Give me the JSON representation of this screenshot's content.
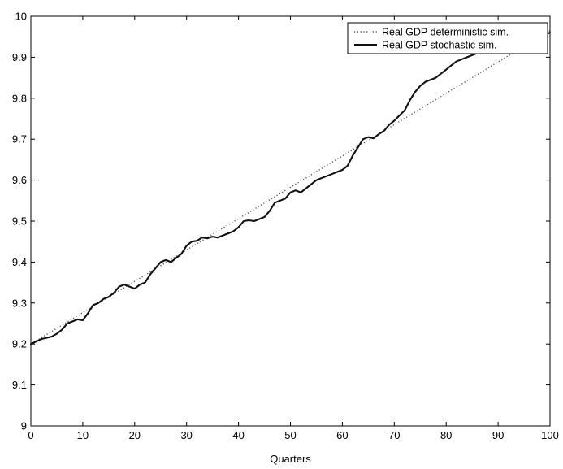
{
  "chart_data": {
    "type": "line",
    "title": "",
    "xlabel": "Quarters",
    "ylabel": "",
    "xlim": [
      0,
      100
    ],
    "ylim": [
      9.0,
      10.0
    ],
    "x_ticks": [
      0,
      10,
      20,
      30,
      40,
      50,
      60,
      70,
      80,
      90,
      100
    ],
    "y_ticks": [
      9,
      9.1,
      9.2,
      9.3,
      9.4,
      9.5,
      9.6,
      9.7,
      9.8,
      9.9,
      10
    ],
    "x_tick_labels": [
      "0",
      "10",
      "20",
      "30",
      "40",
      "50",
      "60",
      "70",
      "80",
      "90",
      "100"
    ],
    "y_tick_labels": [
      "9",
      "9.1",
      "9.2",
      "9.3",
      "9.4",
      "9.5",
      "9.6",
      "9.7",
      "9.8",
      "9.9",
      "10"
    ],
    "grid": false,
    "legend_position": "top-right",
    "series": [
      {
        "name": "Real GDP deterministic sim.",
        "style": "dotted",
        "color": "#555555",
        "x": [
          0,
          100
        ],
        "y": [
          9.2,
          9.965
        ]
      },
      {
        "name": "Real GDP stochastic sim.",
        "style": "solid",
        "color": "#111111",
        "x": [
          0,
          2,
          4,
          5,
          6,
          7,
          8,
          9,
          10,
          11,
          12,
          13,
          14,
          15,
          16,
          17,
          18,
          19,
          20,
          21,
          22,
          23,
          24,
          25,
          26,
          27,
          28,
          29,
          30,
          31,
          32,
          33,
          34,
          35,
          36,
          37,
          38,
          39,
          40,
          41,
          42,
          43,
          44,
          45,
          46,
          47,
          48,
          49,
          50,
          51,
          52,
          53,
          54,
          55,
          56,
          57,
          58,
          59,
          60,
          61,
          62,
          63,
          64,
          65,
          66,
          67,
          68,
          69,
          70,
          71,
          72,
          73,
          74,
          75,
          76,
          77,
          78,
          79,
          80,
          81,
          82,
          83,
          84,
          85,
          86,
          87,
          88,
          89,
          90,
          91,
          92,
          93,
          94,
          95,
          96,
          97,
          98,
          99,
          100
        ],
        "y": [
          9.2,
          9.212,
          9.218,
          9.225,
          9.235,
          9.25,
          9.255,
          9.26,
          9.258,
          9.275,
          9.295,
          9.3,
          9.31,
          9.315,
          9.325,
          9.34,
          9.345,
          9.34,
          9.335,
          9.345,
          9.35,
          9.37,
          9.385,
          9.4,
          9.405,
          9.4,
          9.41,
          9.42,
          9.44,
          9.45,
          9.452,
          9.46,
          9.458,
          9.462,
          9.46,
          9.465,
          9.47,
          9.475,
          9.485,
          9.5,
          9.502,
          9.5,
          9.505,
          9.51,
          9.525,
          9.545,
          9.55,
          9.555,
          9.57,
          9.575,
          9.57,
          9.58,
          9.59,
          9.6,
          9.605,
          9.61,
          9.615,
          9.62,
          9.625,
          9.635,
          9.66,
          9.68,
          9.7,
          9.705,
          9.702,
          9.712,
          9.72,
          9.735,
          9.745,
          9.758,
          9.77,
          9.795,
          9.815,
          9.83,
          9.84,
          9.845,
          9.85,
          9.86,
          9.87,
          9.88,
          9.89,
          9.895,
          9.9,
          9.905,
          9.91,
          9.915,
          9.92,
          9.925,
          9.928,
          9.932,
          9.935,
          9.938,
          9.942,
          9.945,
          9.948,
          9.95,
          9.952,
          9.955,
          9.96
        ]
      }
    ]
  }
}
